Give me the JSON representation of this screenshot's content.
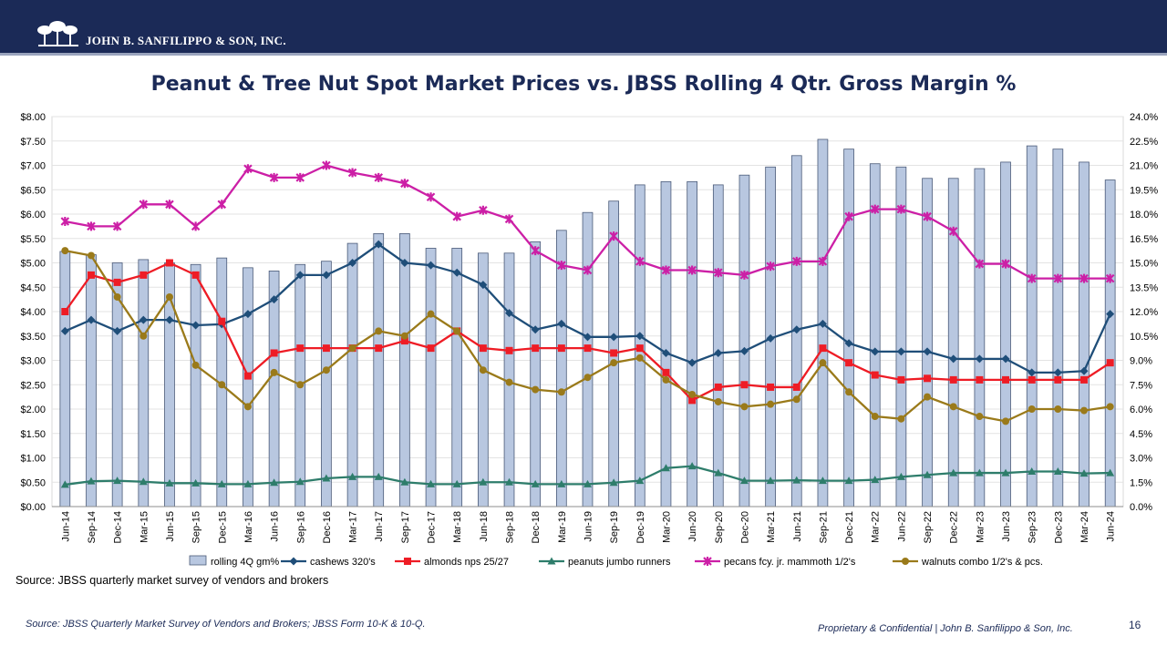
{
  "header": {
    "company": "JOHN B. SANFILIPPO & SON, INC."
  },
  "chart_title": "Peanut & Tree Nut Spot Market Prices vs. JBSS Rolling 4 Qtr. Gross Margin %",
  "chart_data": {
    "type": "bar+line",
    "categories": [
      "Jun-14",
      "Sep-14",
      "Dec-14",
      "Mar-15",
      "Jun-15",
      "Sep-15",
      "Dec-15",
      "Mar-16",
      "Jun-16",
      "Sep-16",
      "Dec-16",
      "Mar-17",
      "Jun-17",
      "Sep-17",
      "Dec-17",
      "Mar-18",
      "Jun-18",
      "Sep-18",
      "Dec-18",
      "Mar-19",
      "Jun-19",
      "Sep-19",
      "Dec-19",
      "Mar-20",
      "Jun-20",
      "Sep-20",
      "Dec-20",
      "Mar-21",
      "Jun-21",
      "Sep-21",
      "Dec-21",
      "Mar-22",
      "Jun-22",
      "Sep-22",
      "Dec-22",
      "Mar-23",
      "Jun-23",
      "Sep-23",
      "Dec-23",
      "Mar-24",
      "Jun-24"
    ],
    "left_axis": {
      "min": 0,
      "max": 8,
      "step": 0.5,
      "ticks": [
        "$0.00",
        "$0.50",
        "$1.00",
        "$1.50",
        "$2.00",
        "$2.50",
        "$3.00",
        "$3.50",
        "$4.00",
        "$4.50",
        "$5.00",
        "$5.50",
        "$6.00",
        "$6.50",
        "$7.00",
        "$7.50",
        "$8.00"
      ]
    },
    "right_axis": {
      "min": 0,
      "max": 24,
      "step": 1.5,
      "ticks": [
        "0.0%",
        "1.5%",
        "3.0%",
        "4.5%",
        "6.0%",
        "7.5%",
        "9.0%",
        "10.5%",
        "12.0%",
        "13.5%",
        "15.0%",
        "16.5%",
        "18.0%",
        "19.5%",
        "21.0%",
        "22.5%",
        "24.0%"
      ]
    },
    "bars": {
      "name": "rolling 4Q gm%",
      "axis": "right",
      "color": "#b8c7e0",
      "edge": "#4a5a78",
      "values": [
        15.7,
        15.5,
        15.0,
        15.2,
        15.0,
        14.9,
        15.3,
        14.7,
        14.5,
        14.9,
        15.1,
        16.2,
        16.8,
        16.8,
        15.9,
        15.9,
        15.6,
        15.6,
        16.3,
        17.0,
        18.1,
        18.8,
        19.8,
        20.0,
        20.0,
        19.8,
        20.4,
        20.9,
        21.6,
        22.6,
        22.0,
        21.1,
        20.9,
        20.2,
        20.2,
        20.8,
        21.2,
        22.2,
        22.0,
        21.2,
        20.1
      ]
    },
    "series": [
      {
        "name": "cashews 320's",
        "color": "#1f4e79",
        "marker": "diamond",
        "values": [
          3.6,
          3.83,
          3.6,
          3.83,
          3.83,
          3.72,
          3.74,
          3.95,
          4.25,
          4.75,
          4.75,
          5.0,
          5.38,
          5.0,
          4.95,
          4.8,
          4.55,
          3.97,
          3.63,
          3.75,
          3.48,
          3.48,
          3.5,
          3.15,
          2.95,
          3.15,
          3.19,
          3.45,
          3.63,
          3.75,
          3.35,
          3.18,
          3.18,
          3.18,
          3.03,
          3.03,
          3.03,
          2.75,
          2.75,
          2.78,
          3.95
        ]
      },
      {
        "name": "almonds nps 25/27",
        "color": "#ee1c25",
        "marker": "square",
        "values": [
          4.0,
          4.75,
          4.6,
          4.75,
          5.0,
          4.75,
          3.8,
          2.68,
          3.15,
          3.25,
          3.25,
          3.25,
          3.25,
          3.4,
          3.25,
          3.6,
          3.25,
          3.2,
          3.25,
          3.25,
          3.25,
          3.15,
          3.25,
          2.75,
          2.18,
          2.45,
          2.5,
          2.45,
          2.45,
          3.25,
          2.95,
          2.7,
          2.6,
          2.63,
          2.6,
          2.6,
          2.6,
          2.6,
          2.6,
          2.6,
          2.95
        ]
      },
      {
        "name": "peanuts jumbo runners",
        "color": "#2e7d6b",
        "marker": "triangle",
        "values": [
          0.45,
          0.52,
          0.53,
          0.51,
          0.48,
          0.48,
          0.46,
          0.46,
          0.49,
          0.51,
          0.58,
          0.61,
          0.61,
          0.5,
          0.46,
          0.46,
          0.5,
          0.5,
          0.46,
          0.46,
          0.46,
          0.49,
          0.53,
          0.79,
          0.83,
          0.69,
          0.53,
          0.53,
          0.54,
          0.53,
          0.53,
          0.55,
          0.61,
          0.65,
          0.69,
          0.69,
          0.69,
          0.72,
          0.72,
          0.68,
          0.69
        ]
      },
      {
        "name": "pecans fcy. jr. mammoth 1/2's",
        "color": "#cc1fa6",
        "marker": "star",
        "values": [
          5.85,
          5.75,
          5.75,
          6.2,
          6.2,
          5.75,
          6.2,
          6.93,
          6.75,
          6.75,
          7.0,
          6.85,
          6.75,
          6.63,
          6.35,
          5.95,
          6.08,
          5.9,
          5.25,
          4.95,
          4.85,
          5.55,
          5.03,
          4.85,
          4.85,
          4.8,
          4.75,
          4.93,
          5.03,
          5.03,
          5.95,
          6.1,
          6.1,
          5.95,
          5.65,
          4.98,
          4.98,
          4.68,
          4.68,
          4.68,
          4.68
        ]
      },
      {
        "name": "walnuts combo 1/2's & pcs.",
        "color": "#9a7a1a",
        "marker": "circle",
        "values": [
          5.25,
          5.15,
          4.3,
          3.5,
          4.3,
          2.9,
          2.5,
          2.05,
          2.75,
          2.5,
          2.8,
          3.25,
          3.6,
          3.5,
          3.95,
          3.6,
          2.8,
          2.55,
          2.4,
          2.35,
          2.65,
          2.95,
          3.05,
          2.6,
          2.3,
          2.15,
          2.05,
          2.1,
          2.2,
          2.95,
          2.35,
          1.85,
          1.8,
          2.25,
          2.05,
          1.85,
          1.75,
          2.0,
          2.0,
          1.97,
          2.05
        ]
      }
    ],
    "legend": [
      "rolling 4Q gm%",
      "cashews 320's",
      "almonds nps 25/27",
      "peanuts jumbo runners",
      "pecans fcy. jr. mammoth 1/2's",
      "walnuts combo 1/2's & pcs."
    ]
  },
  "footer": {
    "source_note": "Source:  JBSS quarterly market survey of vendors and brokers",
    "source_italic": "Source: JBSS Quarterly Market Survey of Vendors and Brokers; JBSS Form 10-K & 10-Q.",
    "confidential": "Proprietary & Confidential |  John B. Sanfilippo & Son, Inc.",
    "page_number": "16"
  }
}
